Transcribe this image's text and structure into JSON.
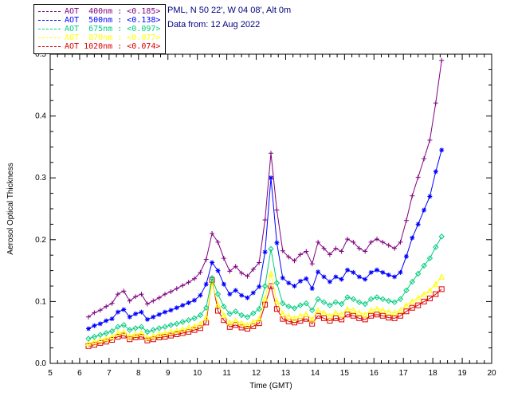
{
  "header": {
    "line1": "PML, N 50 22', W 04 08', Alt 0m",
    "line2": "Data from: 12 Aug 2022",
    "color": "#000080"
  },
  "chart_data": {
    "type": "line",
    "title": "",
    "xlabel": "Time (GMT)",
    "ylabel": "Aerosol Optical Thickness",
    "xlim": [
      5,
      20
    ],
    "ylim": [
      0,
      0.5
    ],
    "xticks": [
      5,
      6,
      7,
      8,
      9,
      10,
      11,
      12,
      13,
      14,
      15,
      16,
      17,
      18,
      19,
      20
    ],
    "yticks": [
      0,
      0.1,
      0.2,
      0.3,
      0.4,
      0.5
    ],
    "x_minor_step": 0.25,
    "y_minor_step": 0.025,
    "grid": false,
    "legend_position": "top-left",
    "x": [
      6.3,
      6.5,
      6.7,
      6.9,
      7.1,
      7.3,
      7.5,
      7.7,
      7.9,
      8.1,
      8.3,
      8.5,
      8.7,
      8.9,
      9.1,
      9.3,
      9.5,
      9.7,
      9.9,
      10.1,
      10.3,
      10.5,
      10.7,
      10.9,
      11.1,
      11.3,
      11.5,
      11.7,
      11.9,
      12.1,
      12.3,
      12.5,
      12.7,
      12.9,
      13.1,
      13.3,
      13.5,
      13.7,
      13.9,
      14.1,
      14.3,
      14.5,
      14.7,
      14.9,
      15.1,
      15.3,
      15.5,
      15.7,
      15.9,
      16.1,
      16.3,
      16.5,
      16.7,
      16.9,
      17.1,
      17.3,
      17.5,
      17.7,
      17.9,
      18.1,
      18.3
    ],
    "series": [
      {
        "name": "AOT 400nm",
        "legend_label": "AOT  400nm : <0.185>",
        "mean": "<0.185>",
        "color": "#7f007f",
        "marker": "plus",
        "values": [
          0.075,
          0.082,
          0.086,
          0.092,
          0.097,
          0.112,
          0.117,
          0.101,
          0.108,
          0.112,
          0.096,
          0.101,
          0.106,
          0.112,
          0.116,
          0.121,
          0.126,
          0.131,
          0.137,
          0.147,
          0.168,
          0.21,
          0.196,
          0.17,
          0.149,
          0.157,
          0.146,
          0.141,
          0.152,
          0.163,
          0.232,
          0.34,
          0.248,
          0.182,
          0.172,
          0.166,
          0.176,
          0.181,
          0.161,
          0.196,
          0.186,
          0.176,
          0.186,
          0.181,
          0.201,
          0.196,
          0.186,
          0.181,
          0.196,
          0.201,
          0.196,
          0.191,
          0.186,
          0.196,
          0.231,
          0.271,
          0.301,
          0.331,
          0.361,
          0.421,
          0.49
        ]
      },
      {
        "name": "AOT 500nm",
        "legend_label": "AOT  500nm : <0.138>",
        "mean": "<0.138>",
        "color": "#0000ff",
        "marker": "asterisk",
        "values": [
          0.056,
          0.061,
          0.064,
          0.069,
          0.072,
          0.083,
          0.087,
          0.075,
          0.08,
          0.083,
          0.071,
          0.075,
          0.079,
          0.083,
          0.086,
          0.09,
          0.094,
          0.098,
          0.102,
          0.11,
          0.128,
          0.163,
          0.15,
          0.128,
          0.112,
          0.118,
          0.11,
          0.106,
          0.114,
          0.124,
          0.18,
          0.3,
          0.195,
          0.138,
          0.13,
          0.125,
          0.133,
          0.137,
          0.121,
          0.148,
          0.14,
          0.132,
          0.14,
          0.136,
          0.151,
          0.147,
          0.14,
          0.136,
          0.147,
          0.151,
          0.147,
          0.143,
          0.14,
          0.147,
          0.173,
          0.203,
          0.225,
          0.248,
          0.27,
          0.31,
          0.345
        ]
      },
      {
        "name": "AOT 675nm",
        "legend_label": "AOT  675nm : <0.097>",
        "mean": "<0.097>",
        "color": "#00cc80",
        "marker": "diamond",
        "values": [
          0.04,
          0.043,
          0.046,
          0.049,
          0.052,
          0.059,
          0.062,
          0.054,
          0.057,
          0.059,
          0.051,
          0.054,
          0.057,
          0.059,
          0.062,
          0.064,
          0.067,
          0.07,
          0.073,
          0.078,
          0.09,
          0.138,
          0.112,
          0.092,
          0.08,
          0.084,
          0.078,
          0.075,
          0.081,
          0.088,
          0.125,
          0.185,
          0.13,
          0.097,
          0.092,
          0.089,
          0.094,
          0.097,
          0.086,
          0.104,
          0.099,
          0.094,
          0.099,
          0.096,
          0.107,
          0.104,
          0.099,
          0.096,
          0.104,
          0.107,
          0.104,
          0.101,
          0.099,
          0.104,
          0.118,
          0.132,
          0.145,
          0.158,
          0.17,
          0.188,
          0.205
        ]
      },
      {
        "name": "AOT 870nm",
        "legend_label": "AOT  870nm : <0.077>",
        "mean": "<0.077>",
        "color": "#ffff00",
        "marker": "triangle",
        "values": [
          0.033,
          0.035,
          0.038,
          0.04,
          0.043,
          0.049,
          0.051,
          0.044,
          0.047,
          0.049,
          0.042,
          0.044,
          0.047,
          0.049,
          0.051,
          0.053,
          0.055,
          0.058,
          0.06,
          0.064,
          0.074,
          0.13,
          0.095,
          0.078,
          0.066,
          0.069,
          0.065,
          0.062,
          0.067,
          0.072,
          0.105,
          0.145,
          0.1,
          0.08,
          0.076,
          0.073,
          0.077,
          0.08,
          0.071,
          0.086,
          0.082,
          0.077,
          0.082,
          0.079,
          0.088,
          0.086,
          0.082,
          0.079,
          0.086,
          0.088,
          0.086,
          0.083,
          0.082,
          0.086,
          0.094,
          0.1,
          0.106,
          0.112,
          0.118,
          0.128,
          0.14
        ]
      },
      {
        "name": "AOT 1020nm",
        "legend_label": "AOT 1020nm : <0.074>",
        "mean": "<0.074>",
        "color": "#dd0000",
        "marker": "square",
        "values": [
          0.028,
          0.03,
          0.033,
          0.035,
          0.038,
          0.043,
          0.045,
          0.039,
          0.042,
          0.043,
          0.037,
          0.039,
          0.042,
          0.043,
          0.045,
          0.047,
          0.049,
          0.051,
          0.054,
          0.057,
          0.066,
          0.135,
          0.085,
          0.07,
          0.059,
          0.062,
          0.058,
          0.056,
          0.06,
          0.065,
          0.095,
          0.125,
          0.088,
          0.072,
          0.068,
          0.066,
          0.069,
          0.072,
          0.064,
          0.077,
          0.073,
          0.069,
          0.073,
          0.071,
          0.079,
          0.077,
          0.073,
          0.071,
          0.077,
          0.079,
          0.077,
          0.074,
          0.073,
          0.077,
          0.084,
          0.09,
          0.094,
          0.1,
          0.105,
          0.112,
          0.12
        ]
      }
    ]
  }
}
